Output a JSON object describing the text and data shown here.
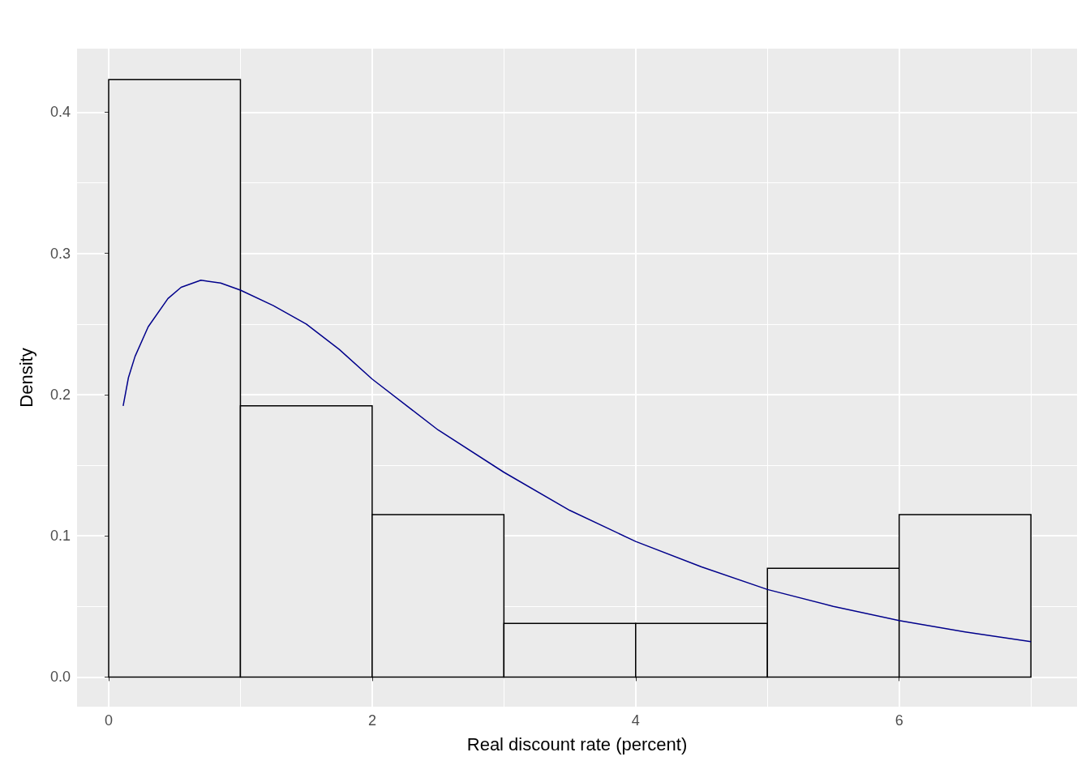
{
  "chart_data": {
    "type": "histogram",
    "xlabel": "Real discount rate (percent)",
    "ylabel": "Density",
    "series": [
      {
        "color": "#ebebeb",
        "bins": [
          0,
          1,
          2,
          3,
          4,
          5,
          6,
          7
        ],
        "values": [
          0.423,
          0.192,
          0.115,
          0.038,
          0.038,
          0.077,
          0.115
        ]
      },
      {
        "type": "line",
        "color": "#00008b",
        "x": [
          0.11,
          0.15,
          0.2,
          0.3,
          0.45,
          0.55,
          0.7,
          0.85,
          1,
          1.25,
          1.5,
          1.75,
          2,
          2.5,
          3,
          3.5,
          4,
          4.5,
          5,
          5.5,
          6,
          6.5,
          7
        ],
        "values": [
          0.192,
          0.212,
          0.227,
          0.248,
          0.268,
          0.276,
          0.281,
          0.279,
          0.274,
          0.263,
          0.25,
          0.232,
          0.211,
          0.175,
          0.145,
          0.118,
          0.096,
          0.078,
          0.062,
          0.05,
          0.04,
          0.032,
          0.025
        ]
      }
    ],
    "xlim": [
      -0.24,
      7.35
    ],
    "ylim": [
      -0.021,
      0.445
    ],
    "xticks": [
      0,
      2,
      4,
      6
    ],
    "yticks": [
      {
        "value": 0,
        "label": "0.0"
      },
      {
        "value": 0.1,
        "label": "0.1"
      },
      {
        "value": 0.2,
        "label": "0.2"
      },
      {
        "value": 0.3,
        "label": "0.3"
      },
      {
        "value": 0.4,
        "label": "0.4"
      }
    ],
    "grid": true,
    "marker": "none",
    "line_style": "solid"
  }
}
